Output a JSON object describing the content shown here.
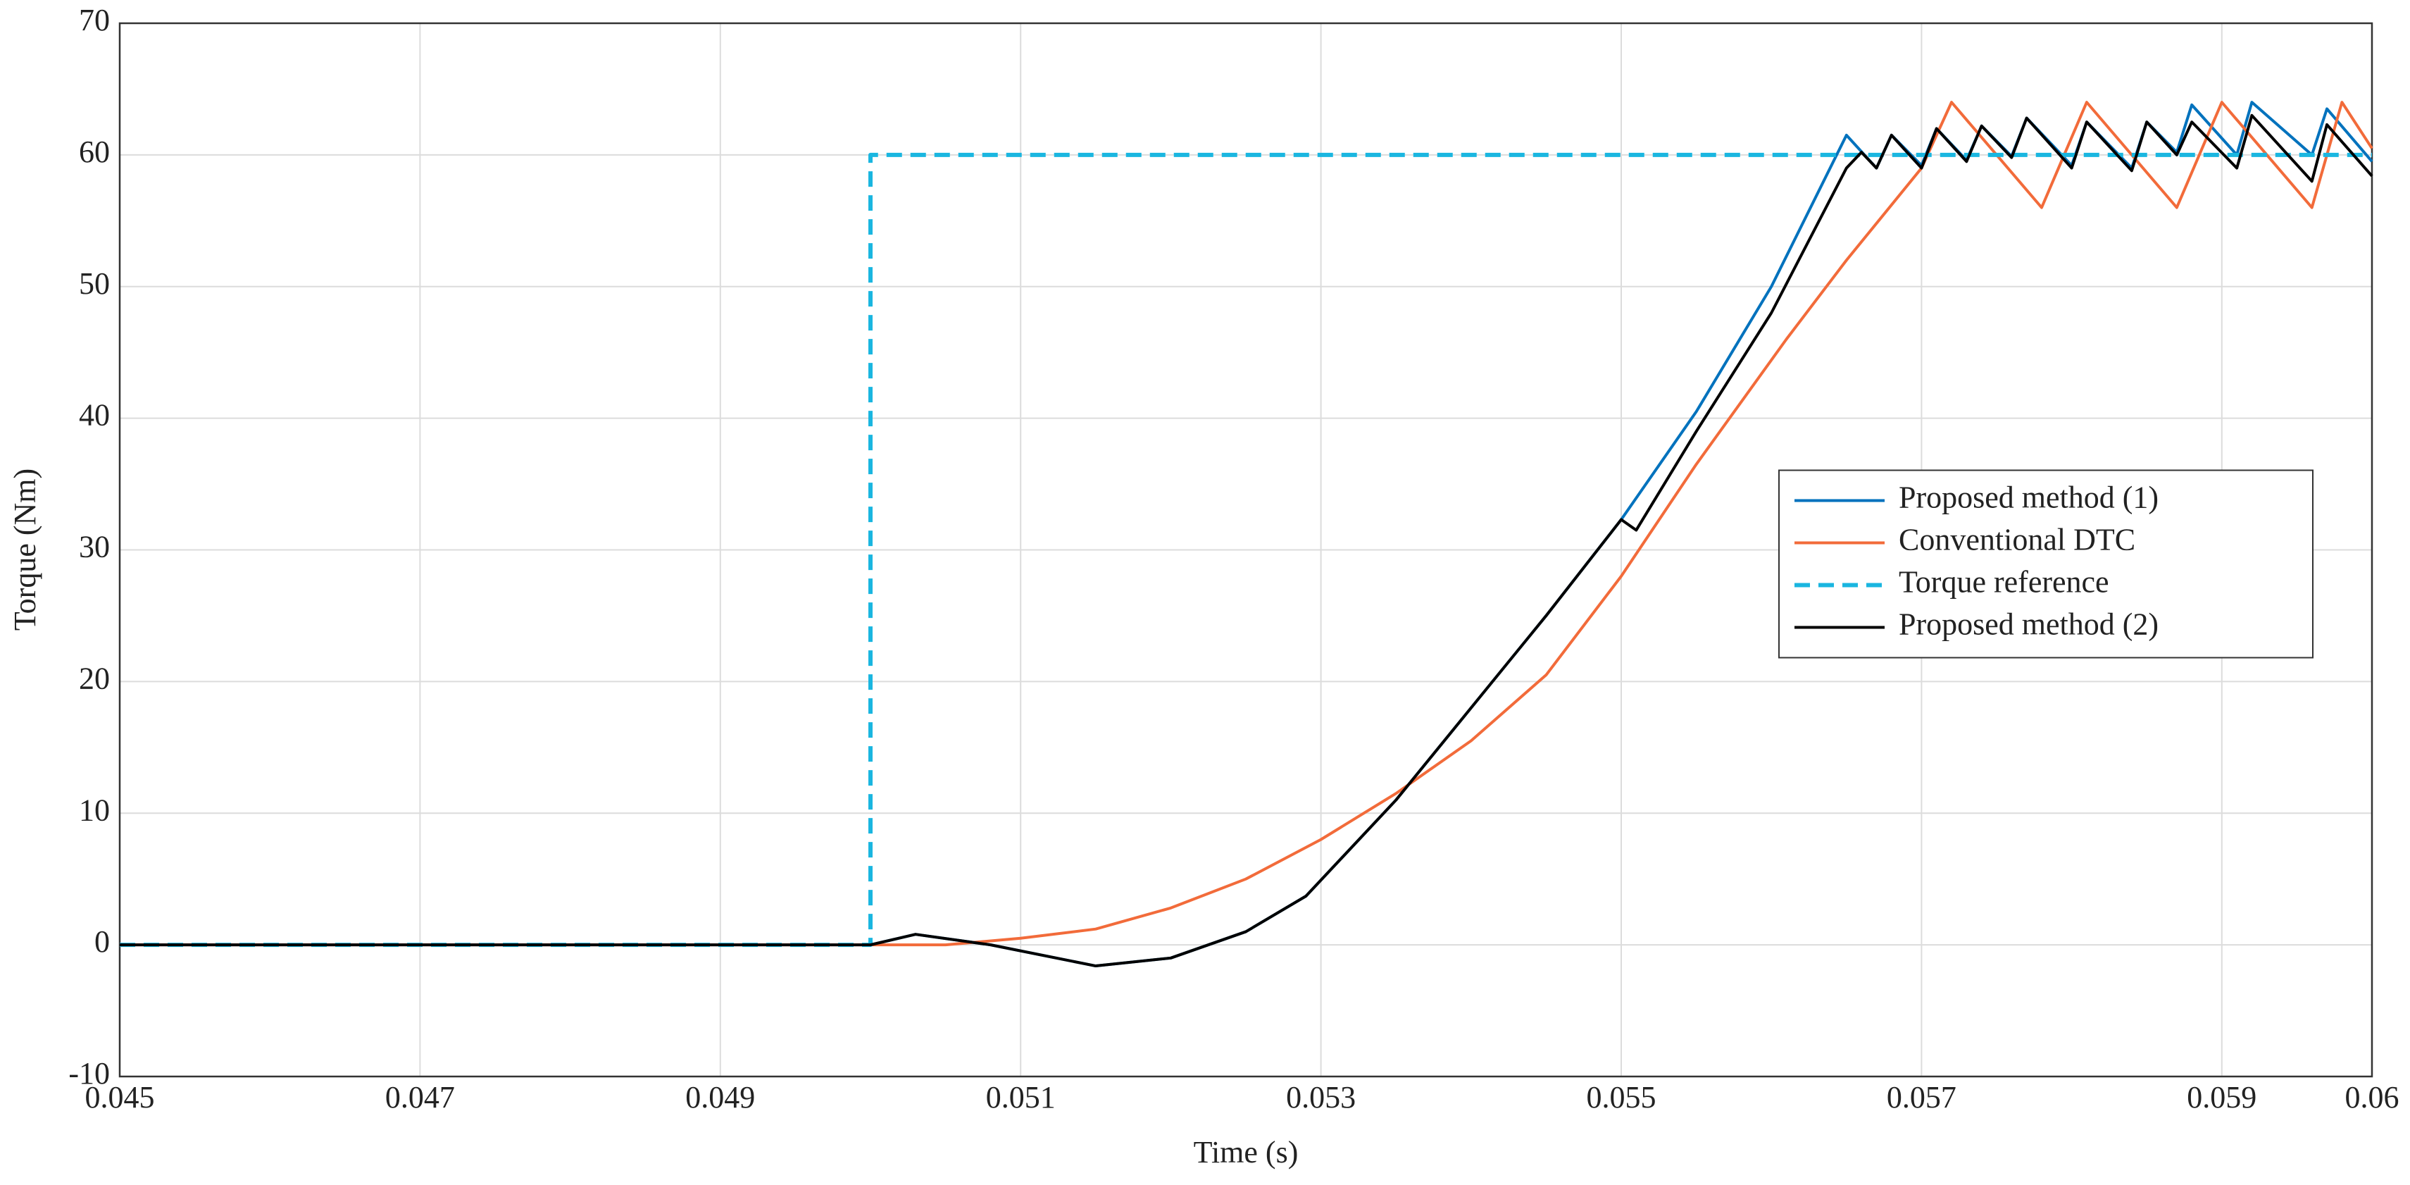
{
  "chart_data": {
    "type": "line",
    "xlabel": "Time (s)",
    "ylabel": "Torque (Nm)",
    "xlim": [
      0.045,
      0.06
    ],
    "ylim": [
      -10,
      70
    ],
    "xticks": [
      0.045,
      0.047,
      0.049,
      0.051,
      0.053,
      0.055,
      0.057,
      0.059,
      0.06
    ],
    "yticks": [
      -10,
      0,
      10,
      20,
      30,
      40,
      50,
      60,
      70
    ],
    "grid": true,
    "legend_position": "right",
    "series": [
      {
        "name": "Proposed method (1)",
        "color": "#0072bd",
        "style": "solid",
        "x": [
          0.045,
          0.05,
          0.0503,
          0.0508,
          0.0515,
          0.052,
          0.0525,
          0.0529,
          0.0535,
          0.054,
          0.0545,
          0.055,
          0.0555,
          0.056,
          0.0565,
          0.0567,
          0.0568,
          0.057,
          0.0571,
          0.0573,
          0.0574,
          0.0576,
          0.0577,
          0.058,
          0.0581,
          0.0584,
          0.0585,
          0.0587,
          0.0588,
          0.0591,
          0.0592,
          0.0596,
          0.0597,
          0.06
        ],
        "values": [
          0,
          0,
          0.8,
          0,
          -1.6,
          -1,
          1,
          3.7,
          11,
          18,
          25,
          32.3,
          40.5,
          50,
          61.5,
          59,
          61.5,
          59.2,
          62,
          59.6,
          62.2,
          59.9,
          62.8,
          59.2,
          62.5,
          59,
          62.5,
          60.2,
          63.8,
          60,
          64,
          60,
          63.5,
          59.5
        ]
      },
      {
        "name": "Conventional DTC",
        "color": "#f26b3a",
        "style": "solid",
        "x": [
          0.045,
          0.0505,
          0.051,
          0.0515,
          0.052,
          0.0525,
          0.053,
          0.0535,
          0.054,
          0.0545,
          0.055,
          0.0555,
          0.0561,
          0.0565,
          0.057,
          0.0572,
          0.0578,
          0.0581,
          0.0587,
          0.059,
          0.0596,
          0.0598,
          0.06
        ],
        "values": [
          0,
          0,
          0.5,
          1.2,
          2.8,
          5,
          8,
          11.5,
          15.5,
          20.5,
          28,
          36.5,
          46,
          52,
          59,
          64,
          56,
          64,
          56,
          64,
          56,
          64,
          60.5
        ]
      },
      {
        "name": "Torque reference",
        "color": "#1ab6e0",
        "style": "dashed",
        "x": [
          0.045,
          0.05,
          0.05,
          0.06
        ],
        "values": [
          0,
          0,
          60,
          60
        ]
      },
      {
        "name": "Proposed method (2)",
        "color": "#000000",
        "style": "solid",
        "x": [
          0.045,
          0.05,
          0.0503,
          0.0508,
          0.0515,
          0.052,
          0.0525,
          0.0529,
          0.0535,
          0.054,
          0.0545,
          0.055,
          0.0551,
          0.0555,
          0.056,
          0.0565,
          0.0566,
          0.0567,
          0.0568,
          0.057,
          0.0571,
          0.0573,
          0.0574,
          0.0576,
          0.0577,
          0.058,
          0.0581,
          0.0584,
          0.0585,
          0.0587,
          0.0588,
          0.0591,
          0.0592,
          0.0596,
          0.0597,
          0.06
        ],
        "values": [
          0,
          0,
          0.8,
          0,
          -1.6,
          -1,
          1,
          3.7,
          11,
          18,
          25,
          32.3,
          31.5,
          39,
          48,
          59,
          60.2,
          59,
          61.5,
          59,
          62,
          59.5,
          62.2,
          59.8,
          62.8,
          59,
          62.5,
          58.8,
          62.5,
          60,
          62.5,
          59,
          63,
          58,
          62.3,
          58.4
        ]
      }
    ]
  }
}
